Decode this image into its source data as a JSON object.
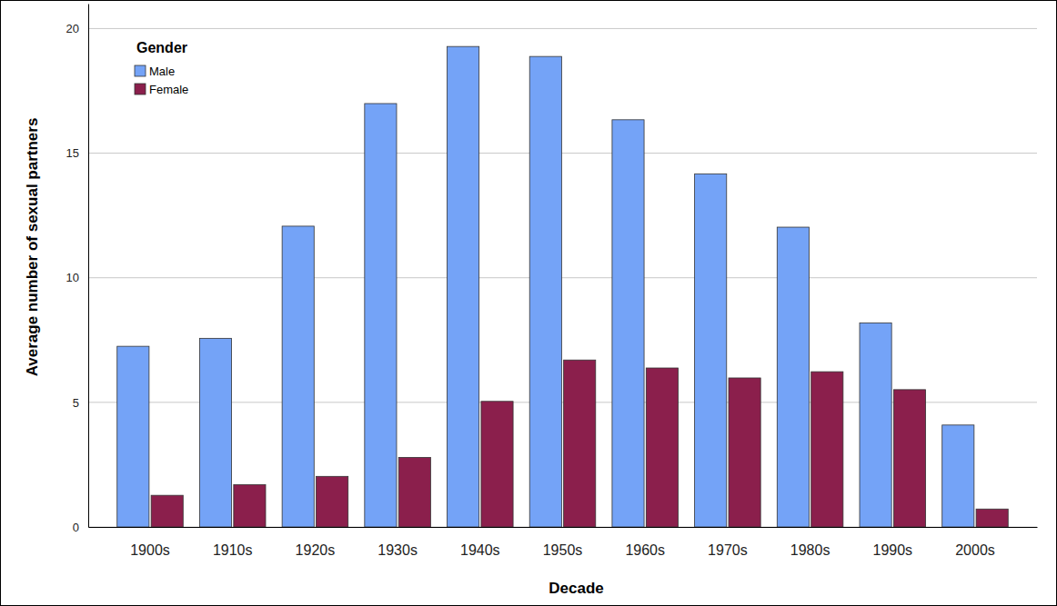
{
  "chart_data": {
    "type": "bar",
    "x_label": "Decade",
    "y_label": "Average number of sexual partners",
    "legend_title": "Gender",
    "legend": "upper left",
    "categories": [
      "1900s",
      "1910s",
      "1920s",
      "1930s",
      "1940s",
      "1950s",
      "1960s",
      "1970s",
      "1980s",
      "1990s",
      "2000s"
    ],
    "series": [
      {
        "name": "Male",
        "color": "#74a3f7",
        "values": [
          7.25,
          7.57,
          12.07,
          16.99,
          19.28,
          18.88,
          16.34,
          14.17,
          12.03,
          8.19,
          4.09
        ]
      },
      {
        "name": "Female",
        "color": "#8b1f4c",
        "values": [
          1.27,
          1.7,
          2.03,
          2.79,
          5.04,
          6.7,
          6.38,
          5.98,
          6.23,
          5.51,
          0.72
        ]
      }
    ],
    "ylim": [
      0,
      21
    ],
    "yticks": [
      0,
      5,
      10,
      15,
      20
    ],
    "grid": true
  }
}
